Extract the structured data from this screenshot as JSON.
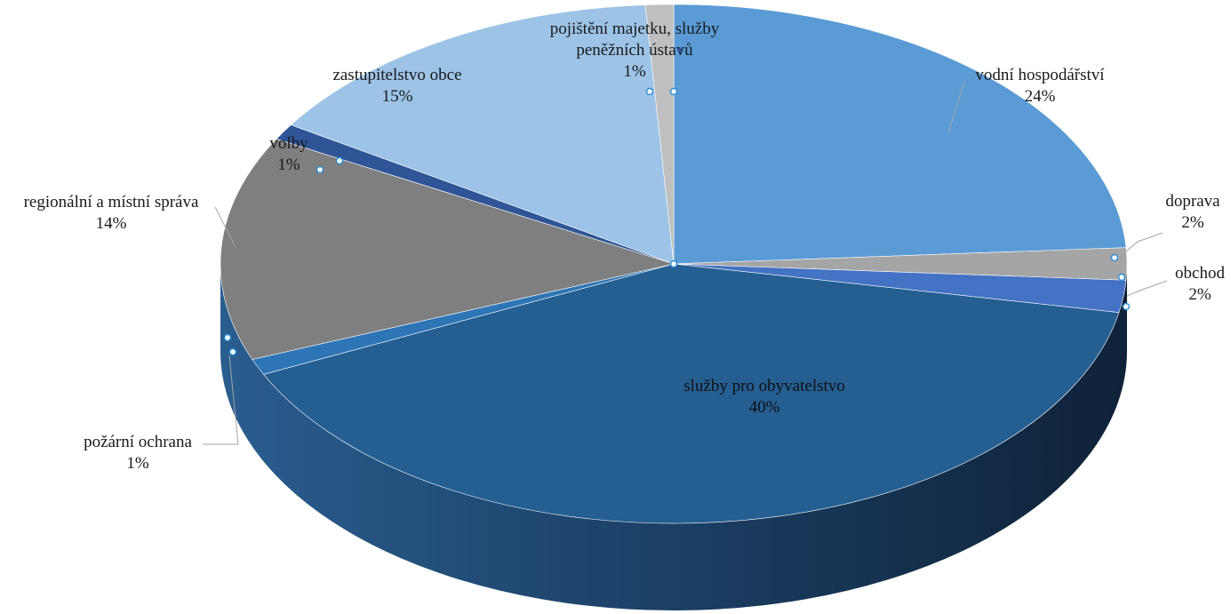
{
  "chart_data": {
    "type": "pie",
    "style": "3d",
    "title": "",
    "slices": [
      {
        "label": "vodní hospodářství",
        "value": 24,
        "pct": "24%",
        "color": "#5b9bd5"
      },
      {
        "label": "doprava",
        "value": 2,
        "pct": "2%",
        "color": "#a5a5a5"
      },
      {
        "label": "obchod",
        "value": 2,
        "pct": "2%",
        "color": "#4472c4"
      },
      {
        "label": "služby pro obyvatelstvo",
        "value": 40,
        "pct": "40%",
        "color": "#255e91"
      },
      {
        "label": "požární ochrana",
        "value": 1,
        "pct": "1%",
        "color": "#2e75b6"
      },
      {
        "label": "regionální a místní správa",
        "value": 14,
        "pct": "14%",
        "color": "#7f7f7f"
      },
      {
        "label": "volby",
        "value": 1,
        "pct": "1%",
        "color": "#2f5597"
      },
      {
        "label": "zastupitelstvo obce",
        "value": 15,
        "pct": "15%",
        "color": "#9dc3e6"
      },
      {
        "label": "pojištění majetku, služby peněžních ústavů",
        "value": 1,
        "pct": "1%",
        "color": "#bfbfbf"
      }
    ],
    "legend": "none",
    "data_labels": "category name and percentage"
  }
}
